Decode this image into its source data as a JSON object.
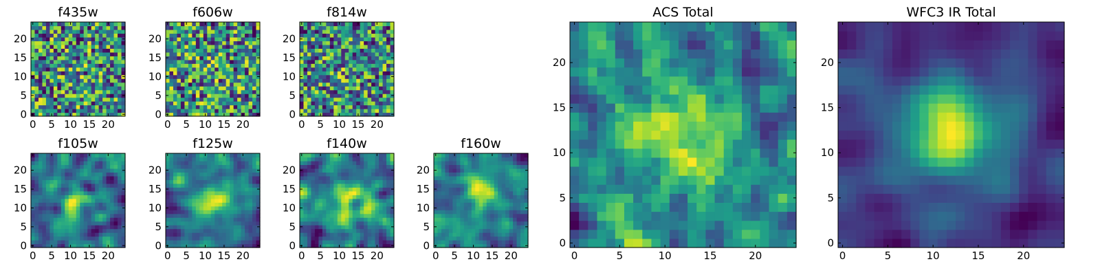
{
  "chart_data": [
    {
      "type": "heatmap",
      "title": "f435w",
      "colormap": "viridis",
      "grid_size": 25,
      "xticks": [
        "0",
        "5",
        "10",
        "15",
        "20"
      ],
      "yticks": [
        "0",
        "5",
        "10",
        "15",
        "20"
      ],
      "xlim": [
        -0.5,
        24.5
      ],
      "ylim": [
        -0.5,
        24.5
      ],
      "seed": 11,
      "smooth": 0,
      "peak": 0.05
    },
    {
      "type": "heatmap",
      "title": "f606w",
      "colormap": "viridis",
      "grid_size": 25,
      "xticks": [
        "0",
        "5",
        "10",
        "15",
        "20"
      ],
      "yticks": [
        "0",
        "5",
        "10",
        "15",
        "20"
      ],
      "xlim": [
        -0.5,
        24.5
      ],
      "ylim": [
        -0.5,
        24.5
      ],
      "seed": 23,
      "smooth": 0,
      "peak": 0.05
    },
    {
      "type": "heatmap",
      "title": "f814w",
      "colormap": "viridis",
      "grid_size": 25,
      "xticks": [
        "0",
        "5",
        "10",
        "15",
        "20"
      ],
      "yticks": [
        "0",
        "5",
        "10",
        "15",
        "20"
      ],
      "xlim": [
        -0.5,
        24.5
      ],
      "ylim": [
        -0.5,
        24.5
      ],
      "seed": 37,
      "smooth": 0,
      "peak": 0.08
    },
    {
      "type": "heatmap",
      "title": "f105w",
      "colormap": "viridis",
      "grid_size": 25,
      "xticks": [
        "0",
        "5",
        "10",
        "15",
        "20"
      ],
      "yticks": [
        "0",
        "5",
        "10",
        "15",
        "20"
      ],
      "xlim": [
        -0.5,
        24.5
      ],
      "ylim": [
        -0.5,
        24.5
      ],
      "seed": 41,
      "smooth": 2,
      "peak": 0.15
    },
    {
      "type": "heatmap",
      "title": "f125w",
      "colormap": "viridis",
      "grid_size": 25,
      "xticks": [
        "0",
        "5",
        "10",
        "15",
        "20"
      ],
      "yticks": [
        "0",
        "5",
        "10",
        "15",
        "20"
      ],
      "xlim": [
        -0.5,
        24.5
      ],
      "ylim": [
        -0.5,
        24.5
      ],
      "seed": 53,
      "smooth": 2,
      "peak": 0.2
    },
    {
      "type": "heatmap",
      "title": "f140w",
      "colormap": "viridis",
      "grid_size": 25,
      "xticks": [
        "0",
        "5",
        "10",
        "15",
        "20"
      ],
      "yticks": [
        "0",
        "5",
        "10",
        "15",
        "20"
      ],
      "xlim": [
        -0.5,
        24.5
      ],
      "ylim": [
        -0.5,
        24.5
      ],
      "seed": 67,
      "smooth": 2,
      "peak": 0.2
    },
    {
      "type": "heatmap",
      "title": "f160w",
      "colormap": "viridis",
      "grid_size": 25,
      "xticks": [
        "0",
        "5",
        "10",
        "15",
        "20"
      ],
      "yticks": [
        "0",
        "5",
        "10",
        "15",
        "20"
      ],
      "xlim": [
        -0.5,
        24.5
      ],
      "ylim": [
        -0.5,
        24.5
      ],
      "seed": 79,
      "smooth": 2,
      "peak": 0.25
    },
    {
      "type": "heatmap",
      "title": "ACS Total",
      "colormap": "viridis",
      "grid_size": 25,
      "xticks": [
        "0",
        "5",
        "10",
        "15",
        "20"
      ],
      "yticks": [
        "0",
        "5",
        "10",
        "15",
        "20"
      ],
      "xlim": [
        -0.5,
        24.5
      ],
      "ylim": [
        -0.5,
        24.5
      ],
      "seed": 89,
      "smooth": 1,
      "peak": 0.4
    },
    {
      "type": "heatmap",
      "title": "WFC3 IR Total",
      "colormap": "viridis",
      "grid_size": 25,
      "xticks": [
        "0",
        "5",
        "10",
        "15",
        "20"
      ],
      "yticks": [
        "0",
        "5",
        "10",
        "15",
        "20"
      ],
      "xlim": [
        -0.5,
        24.5
      ],
      "ylim": [
        -0.5,
        24.5
      ],
      "seed": 97,
      "smooth": 3,
      "peak": 0.7
    }
  ]
}
